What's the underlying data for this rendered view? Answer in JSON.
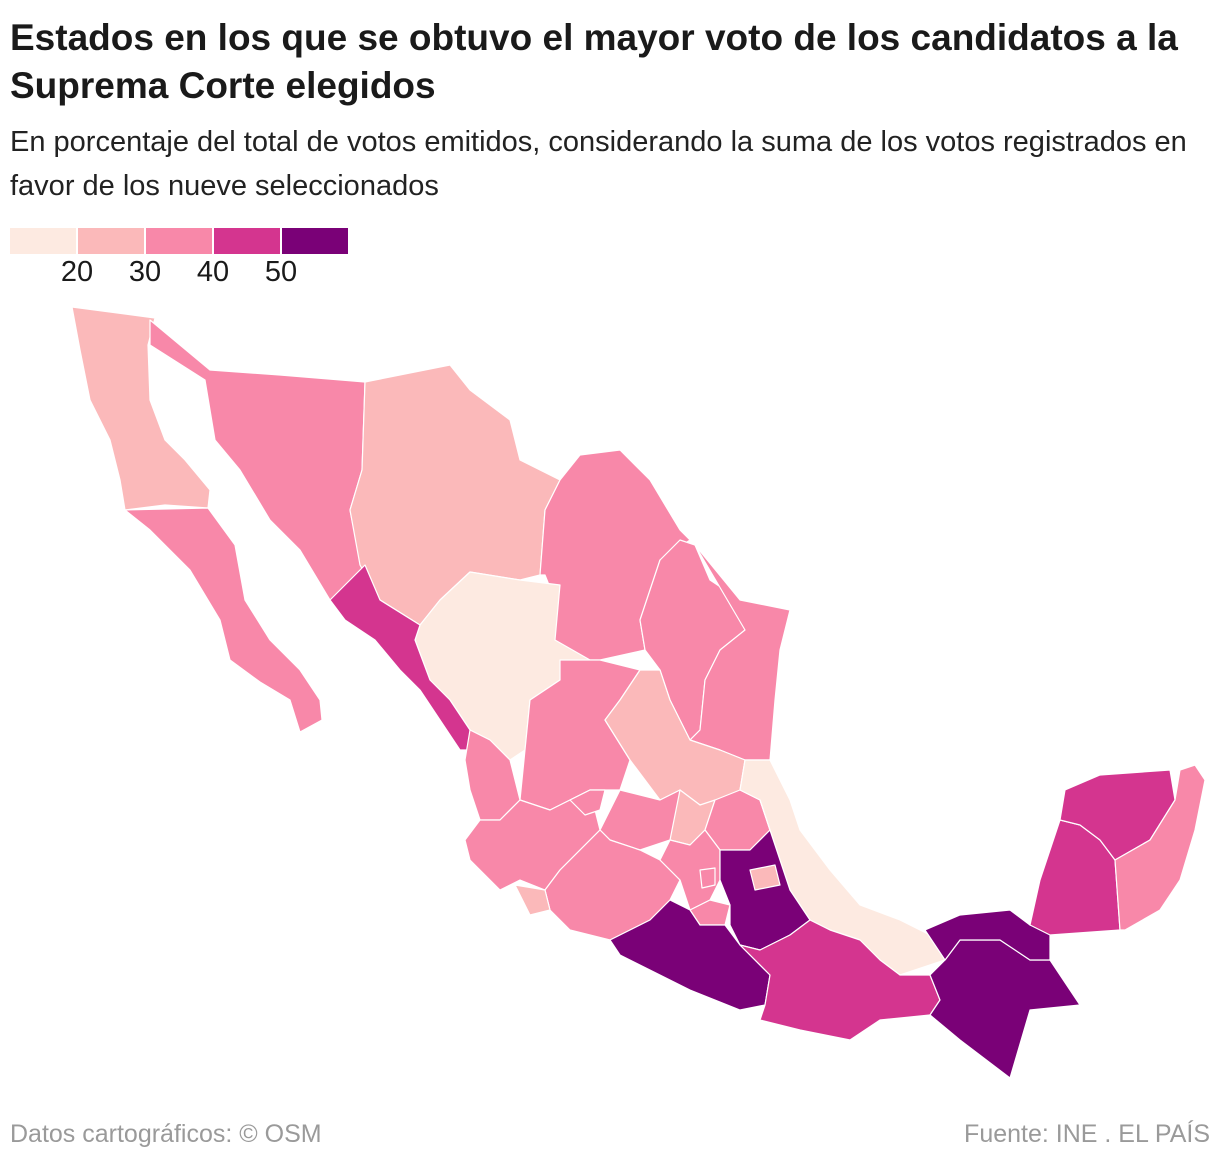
{
  "title": "Estados en los que se obtuvo el mayor voto de los candidatos a la Suprema Corte elegidos",
  "subtitle": "En porcentaje del total de votos emitidos, considerando la suma de los votos registrados en favor de los nueve seleccionados",
  "footer": {
    "left": "Datos cartográficos: © OSM",
    "right": "Fuente: INE . EL PAÍS"
  },
  "chart_data": {
    "type": "choropleth",
    "legend": {
      "colors": [
        "#fdeae1",
        "#fbb9ba",
        "#f888a9",
        "#d4358f",
        "#7a0177"
      ],
      "ticks": [
        "20",
        "30",
        "40",
        "50"
      ]
    },
    "region_bins": {
      "baja-california": 1,
      "baja-california-sur": 2,
      "sonora": 2,
      "chihuahua": 1,
      "coahuila": 2,
      "nuevo-leon": 2,
      "tamaulipas": 2,
      "sinaloa": 3,
      "durango": 0,
      "zacatecas": 2,
      "san-luis-potosi": 1,
      "nayarit": 2,
      "jalisco": 2,
      "aguascalientes": 2,
      "guanajuato": 2,
      "queretaro": 1,
      "hidalgo": 2,
      "veracruz": 0,
      "colima": 1,
      "michoacan": 2,
      "estado-de-mexico": 2,
      "cdmx": 2,
      "morelos": 2,
      "tlaxcala": 1,
      "puebla": 4,
      "guerrero": 4,
      "oaxaca": 3,
      "chiapas": 4,
      "tabasco": 4,
      "campeche": 3,
      "yucatan": 3,
      "quintana-roo": 2
    }
  }
}
